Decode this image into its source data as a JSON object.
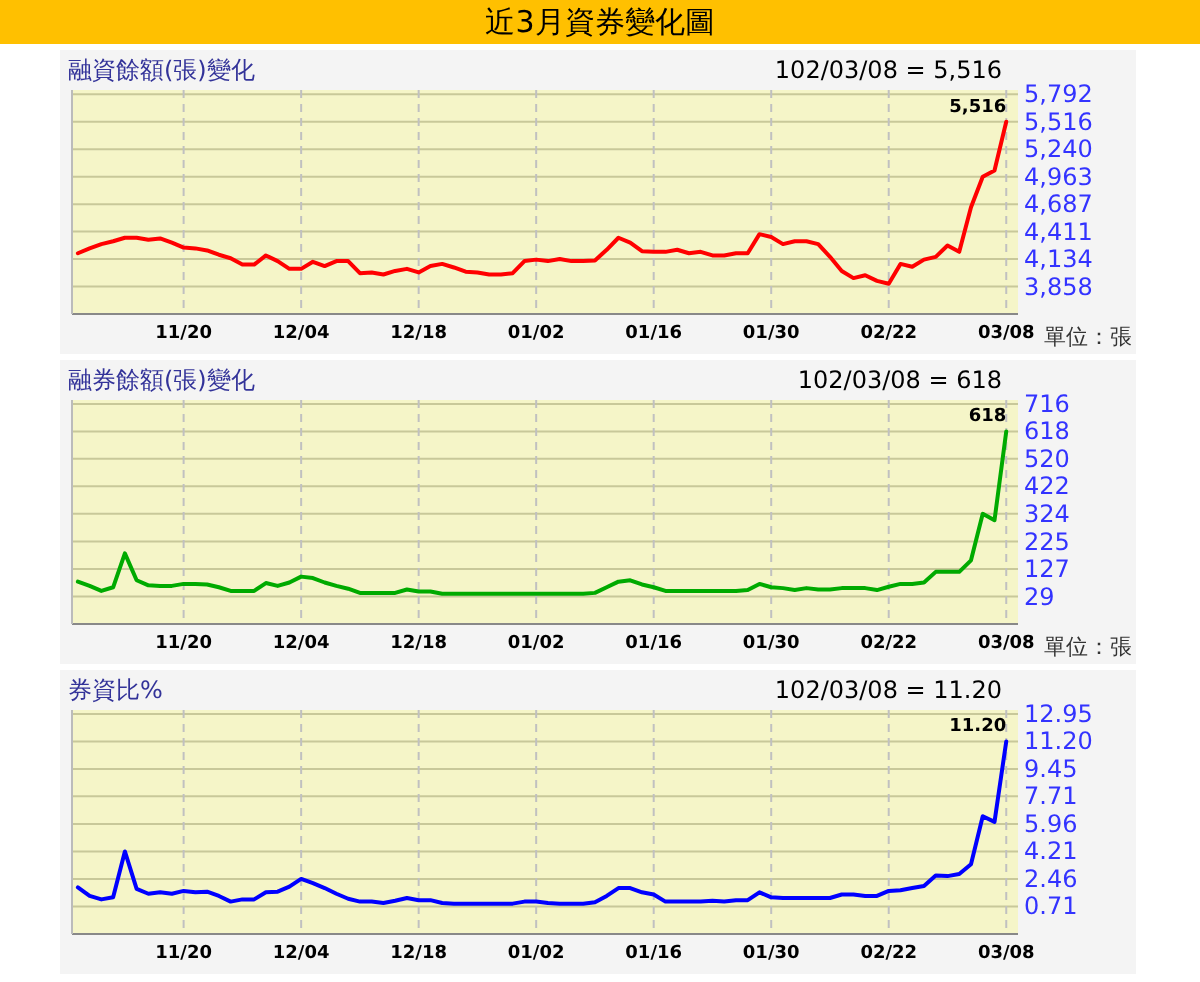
{
  "chart_data": [
    {
      "type": "other",
      "title": "近3月資券變化圖"
    },
    {
      "type": "line",
      "title": "融資餘額(張)變化",
      "subtitle": "102/03/08 = 5,516",
      "categories": [
        null,
        null,
        null,
        null,
        null,
        null,
        null,
        null,
        null,
        "11/20",
        null,
        null,
        null,
        null,
        null,
        null,
        null,
        null,
        null,
        "12/04",
        null,
        null,
        null,
        null,
        null,
        null,
        null,
        null,
        null,
        "12/18",
        null,
        null,
        null,
        null,
        null,
        null,
        null,
        null,
        null,
        "01/02",
        null,
        null,
        null,
        null,
        null,
        null,
        null,
        null,
        null,
        "01/16",
        null,
        null,
        null,
        null,
        null,
        null,
        null,
        null,
        null,
        "01/30",
        null,
        null,
        null,
        null,
        null,
        null,
        null,
        null,
        null,
        "02/22",
        null,
        null,
        null,
        null,
        null,
        null,
        null,
        null,
        null,
        "03/08"
      ],
      "series": [
        {
          "color": "#ff0000",
          "values": [
            4193,
            4242,
            4285,
            4314,
            4349,
            4349,
            4328,
            4342,
            4300,
            4250,
            4242,
            4221,
            4178,
            4143,
            4079,
            4079,
            4171,
            4114,
            4036,
            4036,
            4107,
            4064,
            4114,
            4114,
            3993,
            4000,
            3979,
            4015,
            4036,
            4000,
            4064,
            4086,
            4050,
            4007,
            4000,
            3979,
            3979,
            3993,
            4114,
            4129,
            4114,
            4136,
            4114,
            4114,
            4121,
            4228,
            4349,
            4300,
            4214,
            4207,
            4207,
            4228,
            4193,
            4207,
            4171,
            4171,
            4193,
            4193,
            4385,
            4356,
            4285,
            4314,
            4314,
            4285,
            4157,
            4015,
            3943,
            3972,
            3915,
            3886,
            4086,
            4057,
            4129,
            4157,
            4271,
            4207,
            4655,
            4962,
            5026,
            5516
          ]
        }
      ],
      "ylim": [
        3582,
        5835
      ],
      "yticks": [
        {
          "value": 3858,
          "label": "3,858"
        },
        {
          "value": 4134,
          "label": "4,134"
        },
        {
          "value": 4411,
          "label": "4,411"
        },
        {
          "value": 4687,
          "label": "4,687"
        },
        {
          "value": 4963,
          "label": "4,963"
        },
        {
          "value": 5240,
          "label": "5,240"
        },
        {
          "value": 5516,
          "label": "5,516"
        },
        {
          "value": 5792,
          "label": "5,792"
        }
      ],
      "grid": true,
      "annotations": [
        {
          "text": "5,516",
          "x": "03/08",
          "y": 5516
        },
        "單位：張"
      ]
    },
    {
      "type": "line",
      "title": "融券餘額(張)變化",
      "subtitle": "102/03/08 = 618",
      "categories": [
        null,
        null,
        null,
        null,
        null,
        null,
        null,
        null,
        null,
        "11/20",
        null,
        null,
        null,
        null,
        null,
        null,
        null,
        null,
        null,
        "12/04",
        null,
        null,
        null,
        null,
        null,
        null,
        null,
        null,
        null,
        "12/18",
        null,
        null,
        null,
        null,
        null,
        null,
        null,
        null,
        null,
        "01/02",
        null,
        null,
        null,
        null,
        null,
        null,
        null,
        null,
        null,
        "01/16",
        null,
        null,
        null,
        null,
        null,
        null,
        null,
        null,
        null,
        "01/30",
        null,
        null,
        null,
        null,
        null,
        null,
        null,
        null,
        null,
        "02/22",
        null,
        null,
        null,
        null,
        null,
        null,
        null,
        null,
        null,
        "03/08"
      ],
      "series": [
        {
          "color": "#00aa00",
          "values": [
            82,
            67,
            49,
            62,
            183,
            87,
            69,
            67,
            67,
            74,
            74,
            72,
            62,
            49,
            49,
            49,
            77,
            67,
            79,
            100,
            95,
            79,
            67,
            57,
            42,
            42,
            42,
            42,
            54,
            47,
            47,
            39,
            39,
            39,
            39,
            39,
            39,
            39,
            39,
            39,
            39,
            39,
            39,
            39,
            42,
            62,
            82,
            87,
            72,
            62,
            49,
            49,
            49,
            49,
            49,
            49,
            49,
            52,
            74,
            62,
            59,
            52,
            59,
            54,
            54,
            59,
            59,
            59,
            52,
            64,
            74,
            74,
            79,
            117,
            117,
            117,
            158,
            324,
            301,
            618
          ]
        }
      ],
      "ylim": [
        -69,
        730
      ],
      "yticks": [
        29,
        127,
        225,
        324,
        422,
        520,
        618,
        716
      ],
      "grid": true,
      "annotations": [
        {
          "text": "618",
          "x": "03/08",
          "y": 618
        },
        "單位：張"
      ]
    },
    {
      "type": "line",
      "title": "券資比%",
      "subtitle": "102/03/08 = 11.20",
      "categories": [
        null,
        null,
        null,
        null,
        null,
        null,
        null,
        null,
        null,
        "11/20",
        null,
        null,
        null,
        null,
        null,
        null,
        null,
        null,
        null,
        "12/04",
        null,
        null,
        null,
        null,
        null,
        null,
        null,
        null,
        null,
        "12/18",
        null,
        null,
        null,
        null,
        null,
        null,
        null,
        null,
        null,
        "01/02",
        null,
        null,
        null,
        null,
        null,
        null,
        null,
        null,
        null,
        "01/16",
        null,
        null,
        null,
        null,
        null,
        null,
        null,
        null,
        null,
        "01/30",
        null,
        null,
        null,
        null,
        null,
        null,
        null,
        null,
        null,
        "02/22",
        null,
        null,
        null,
        null,
        null,
        null,
        null,
        null,
        null,
        "03/08"
      ],
      "series": [
        {
          "color": "#0000ff",
          "values": [
            1.92,
            1.38,
            1.16,
            1.29,
            4.21,
            1.83,
            1.52,
            1.61,
            1.52,
            1.7,
            1.61,
            1.65,
            1.38,
            1.02,
            1.16,
            1.16,
            1.61,
            1.65,
            1.97,
            2.46,
            2.19,
            1.88,
            1.52,
            1.2,
            1.02,
            1.02,
            0.93,
            1.07,
            1.25,
            1.11,
            1.11,
            0.93,
            0.89,
            0.89,
            0.89,
            0.89,
            0.89,
            0.89,
            1.02,
            1.02,
            0.93,
            0.89,
            0.89,
            0.89,
            0.98,
            1.38,
            1.88,
            1.88,
            1.61,
            1.47,
            1.02,
            1.02,
            1.02,
            1.02,
            1.07,
            1.02,
            1.11,
            1.11,
            1.61,
            1.29,
            1.25,
            1.25,
            1.25,
            1.25,
            1.25,
            1.47,
            1.47,
            1.38,
            1.38,
            1.7,
            1.74,
            1.88,
            2.01,
            2.68,
            2.64,
            2.77,
            3.4,
            6.45,
            6.09,
            11.2
          ]
        }
      ],
      "ylim": [
        -1.04,
        13.2
      ],
      "yticks": [
        0.71,
        2.46,
        4.21,
        5.96,
        7.71,
        9.45,
        {
          "value": 11.2,
          "label": "11.20"
        },
        12.95
      ],
      "grid": true,
      "annotations": [
        {
          "text": "11.20",
          "x": "03/08",
          "y": 11.2
        }
      ]
    }
  ]
}
